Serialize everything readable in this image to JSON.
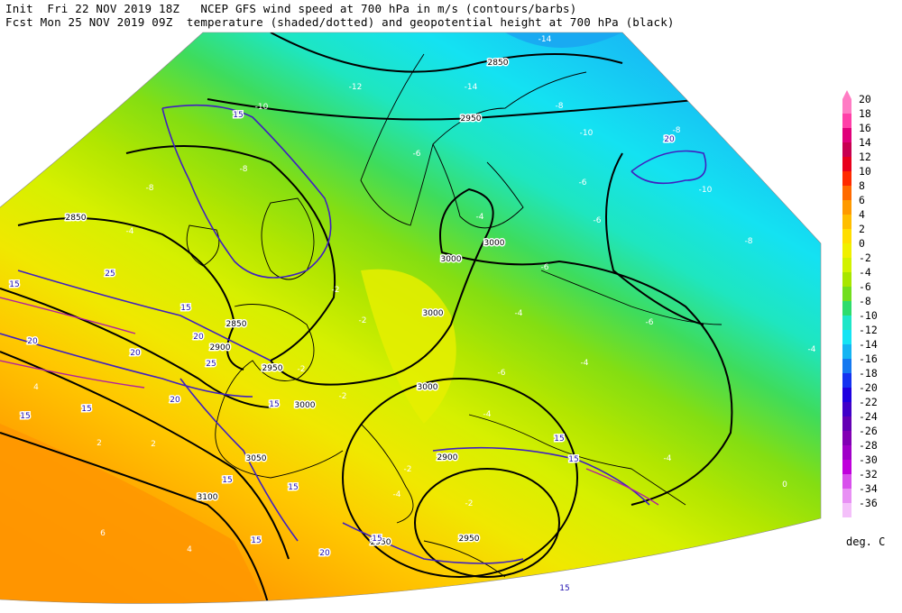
{
  "header": {
    "init_line": "Init  Fri 22 NOV 2019 18Z   NCEP GFS wind speed at 700 hPa in m/s (contours/barbs)",
    "fcst_line": "Fcst Mon 25 NOV 2019 09Z  temperature (shaded/dotted) and geopotential height at 700 hPa (black)"
  },
  "legend": {
    "unit": "deg. C",
    "levels": [
      {
        "label": "20",
        "color": "#ff7cc4"
      },
      {
        "label": "18",
        "color": "#ff3fa8"
      },
      {
        "label": "16",
        "color": "#e0007a"
      },
      {
        "label": "14",
        "color": "#c80050"
      },
      {
        "label": "12",
        "color": "#e8001c"
      },
      {
        "label": "10",
        "color": "#ff2a00"
      },
      {
        "label": "8",
        "color": "#ff6a00"
      },
      {
        "label": "6",
        "color": "#ff9a00"
      },
      {
        "label": "4",
        "color": "#ffbe00"
      },
      {
        "label": "2",
        "color": "#ffde00"
      },
      {
        "label": "0",
        "color": "#f0f000"
      },
      {
        "label": "-2",
        "color": "#d2f200"
      },
      {
        "label": "-4",
        "color": "#a8e600"
      },
      {
        "label": "-6",
        "color": "#72de1e"
      },
      {
        "label": "-8",
        "color": "#2edc6c"
      },
      {
        "label": "-10",
        "color": "#1ee6c8"
      },
      {
        "label": "-12",
        "color": "#14e4f4"
      },
      {
        "label": "-14",
        "color": "#14b4f2"
      },
      {
        "label": "-16",
        "color": "#1478f0"
      },
      {
        "label": "-18",
        "color": "#1432f0"
      },
      {
        "label": "-20",
        "color": "#1e00e0"
      },
      {
        "label": "-22",
        "color": "#4000c8"
      },
      {
        "label": "-24",
        "color": "#6400b4"
      },
      {
        "label": "-26",
        "color": "#8200b4"
      },
      {
        "label": "-28",
        "color": "#a000c8"
      },
      {
        "label": "-30",
        "color": "#c000dc"
      },
      {
        "label": "-32",
        "color": "#d850ec"
      },
      {
        "label": "-34",
        "color": "#e890f4"
      },
      {
        "label": "-36",
        "color": "#f4c0fa"
      }
    ]
  },
  "height_labels": [
    "2850",
    "2850",
    "2850",
    "2900",
    "2950",
    "2950",
    "3000",
    "3000",
    "3000",
    "3000",
    "3000",
    "3050",
    "3100",
    "2950",
    "2900",
    "2950"
  ],
  "temp_labels": [
    "-14",
    "-12",
    "-14",
    "-10",
    "-10",
    "-8",
    "-8",
    "-6",
    "-10",
    "-6",
    "-8",
    "-6",
    "-4",
    "-4",
    "-2",
    "-2",
    "-4",
    "-6",
    "-4",
    "-4",
    "-2",
    "-2",
    "4",
    "2",
    "2",
    "6",
    "4",
    "-2",
    "-4",
    "-2",
    "-4",
    "0",
    "-6",
    "-4",
    "-6",
    "-8",
    "-8"
  ],
  "wind_labels": [
    "15",
    "15",
    "25",
    "15",
    "20",
    "20",
    "25",
    "20",
    "15",
    "15",
    "15",
    "15",
    "15",
    "20",
    "15",
    "15",
    "20",
    "15",
    "15",
    "15",
    "20"
  ]
}
